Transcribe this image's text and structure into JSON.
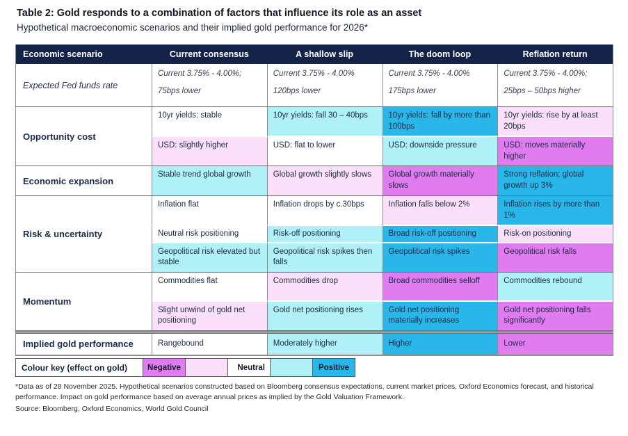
{
  "title": "Table 2: Gold responds to a combination of factors that influence its role as an asset",
  "subtitle": "Hypothetical macroeconomic scenarios and their implied gold performance for 2026*",
  "colors": {
    "header_bg": "#132248",
    "negative_strong": "#E07BF0",
    "negative_mild": "#FBDFFB",
    "neutral": "#FFFFFF",
    "positive_mild": "#AFF1F7",
    "positive_strong": "#29B7EA"
  },
  "table": {
    "headers": [
      "Economic scenario",
      "Current consensus",
      "A shallow slip",
      "The doom loop",
      "Reflation return"
    ],
    "groups": [
      {
        "label": "Expected Fed funds rate",
        "subrows": [
          {
            "cells": [
              {
                "line1": "Current 3.75% - 4.00%;",
                "line2": "75bps lower",
                "tone": "neutral"
              },
              {
                "line1": "Current 3.75% - 4.00%",
                "line2": "120bps lower",
                "tone": "neutral"
              },
              {
                "line1": "Current 3.75% - 4.00%",
                "line2": "175bps lower",
                "tone": "neutral"
              },
              {
                "line1": "Current 3.75% - 4.00%;",
                "line2": "25bps – 50bps higher",
                "tone": "neutral"
              }
            ]
          }
        ]
      },
      {
        "label": "Opportunity cost",
        "subrows": [
          {
            "cells": [
              {
                "text": "10yr yields: stable",
                "tone": "neutral"
              },
              {
                "text": "10yr yields: fall 30 – 40bps",
                "tone": "positive_mild"
              },
              {
                "text": "10yr yields: fall by more than 100bps",
                "tone": "positive_strong"
              },
              {
                "text": "10yr yields: rise by at least 20bps",
                "tone": "negative_mild"
              }
            ]
          },
          {
            "cells": [
              {
                "text": "USD: slightly higher",
                "tone": "negative_mild"
              },
              {
                "text": "USD: flat to lower",
                "tone": "neutral"
              },
              {
                "text": "USD: downside pressure",
                "tone": "positive_mild"
              },
              {
                "text": "USD: moves materially higher",
                "tone": "negative_strong"
              }
            ]
          }
        ]
      },
      {
        "label": "Economic expansion",
        "subrows": [
          {
            "cells": [
              {
                "text": "Stable trend global growth",
                "tone": "positive_mild"
              },
              {
                "text": "Global growth slightly slows",
                "tone": "negative_mild"
              },
              {
                "text": "Global growth materially slows",
                "tone": "negative_strong"
              },
              {
                "text": "Strong reflation; global growth up 3%",
                "tone": "positive_strong"
              }
            ]
          }
        ]
      },
      {
        "label": "Risk & uncertainty",
        "subrows": [
          {
            "cells": [
              {
                "text": "Inflation flat",
                "tone": "neutral"
              },
              {
                "text": "Inflation drops by c.30bps",
                "tone": "neutral"
              },
              {
                "text": "Inflation falls below 2%",
                "tone": "negative_mild"
              },
              {
                "text": "Inflation rises by more than 1%",
                "tone": "positive_strong"
              }
            ]
          },
          {
            "cells": [
              {
                "text": "Neutral risk positioning",
                "tone": "neutral"
              },
              {
                "text": "Risk-off positioning",
                "tone": "positive_mild"
              },
              {
                "text": "Broad risk-off positioning",
                "tone": "positive_strong"
              },
              {
                "text": "Risk-on positioning",
                "tone": "negative_mild"
              }
            ]
          },
          {
            "cells": [
              {
                "text": "Geopolitical risk elevated but stable",
                "tone": "positive_mild"
              },
              {
                "text": "Geopolitical risk spikes then falls",
                "tone": "positive_mild"
              },
              {
                "text": "Geopolitical risk spikes",
                "tone": "positive_strong"
              },
              {
                "text": "Geopolitical risk falls",
                "tone": "negative_strong"
              }
            ]
          }
        ]
      },
      {
        "label": "Momentum",
        "subrows": [
          {
            "cells": [
              {
                "text": "Commodities flat",
                "tone": "neutral"
              },
              {
                "text": "Commodities drop",
                "tone": "negative_mild"
              },
              {
                "text": "Broad commodities selloff",
                "tone": "negative_strong"
              },
              {
                "text": "Commodities rebound",
                "tone": "positive_mild"
              }
            ]
          },
          {
            "cells": [
              {
                "text": "Slight unwind of gold net positioning",
                "tone": "negative_mild"
              },
              {
                "text": "Gold net positioning rises",
                "tone": "positive_mild"
              },
              {
                "text": "Gold net positioning materially increases",
                "tone": "positive_strong"
              },
              {
                "text": "Gold net positioning falls significantly",
                "tone": "negative_strong"
              }
            ]
          }
        ]
      },
      {
        "label": "Implied gold performance",
        "subrows": [
          {
            "cells": [
              {
                "text": "Rangebound",
                "tone": "neutral"
              },
              {
                "text": "Moderately higher",
                "tone": "positive_mild"
              },
              {
                "text": "Higher",
                "tone": "positive_strong"
              },
              {
                "text": "Lower",
                "tone": "negative_strong"
              }
            ]
          }
        ]
      }
    ]
  },
  "colour_key": {
    "label": "Colour key (effect on gold)",
    "cells": [
      {
        "label": "Negative",
        "tone": "negative_strong"
      },
      {
        "label": "",
        "tone": "negative_mild"
      },
      {
        "label": "Neutral",
        "tone": "neutral"
      },
      {
        "label": "",
        "tone": "positive_mild"
      },
      {
        "label": "Positive",
        "tone": "positive_strong"
      }
    ]
  },
  "footnotes": {
    "data_note": "*Data as of 28 November 2025. Hypothetical scenarios constructed based on Bloomberg consensus expectations, current market prices, Oxford Economics forecast, and historical performance. Impact on gold performance based on average annual prices as implied by the Gold Valuation Framework.",
    "source": "Source: Bloomberg, Oxford Economics, World Gold Council"
  }
}
